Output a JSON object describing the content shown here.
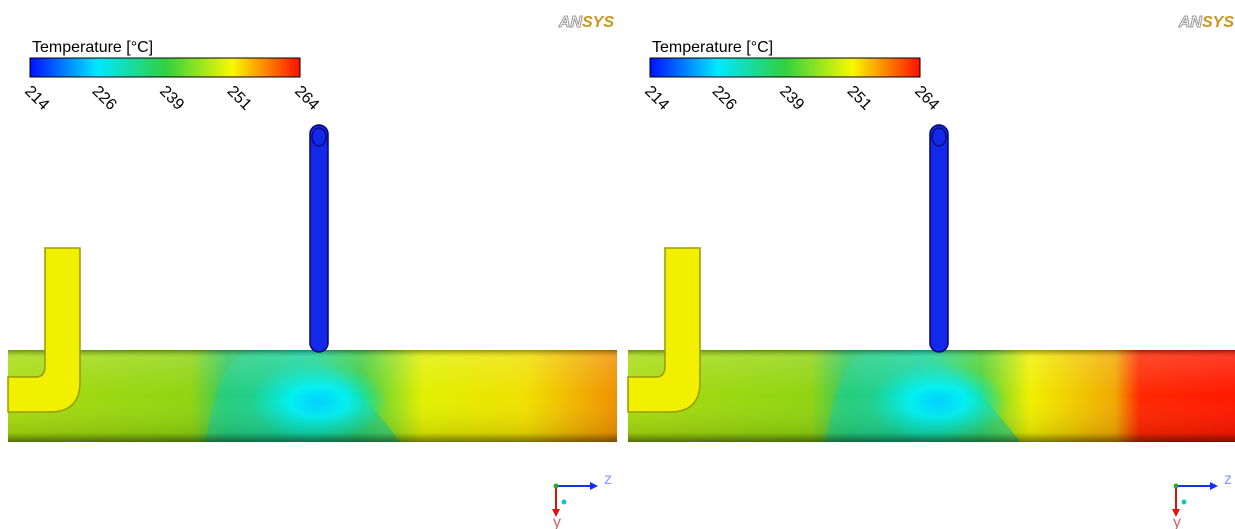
{
  "panels": [
    {
      "logo": [
        "AN",
        "SYS"
      ],
      "legend": {
        "title": "Temperature [°C]",
        "ticks": [
          "214",
          "226",
          "239",
          "251",
          "264"
        ]
      },
      "axes": {
        "x": "z",
        "y": "y"
      }
    },
    {
      "logo": [
        "AN",
        "SYS"
      ],
      "legend": {
        "title": "Temperature [°C]",
        "ticks": [
          "214",
          "226",
          "239",
          "251",
          "264"
        ]
      },
      "axes": {
        "x": "z",
        "y": "y"
      }
    }
  ]
}
